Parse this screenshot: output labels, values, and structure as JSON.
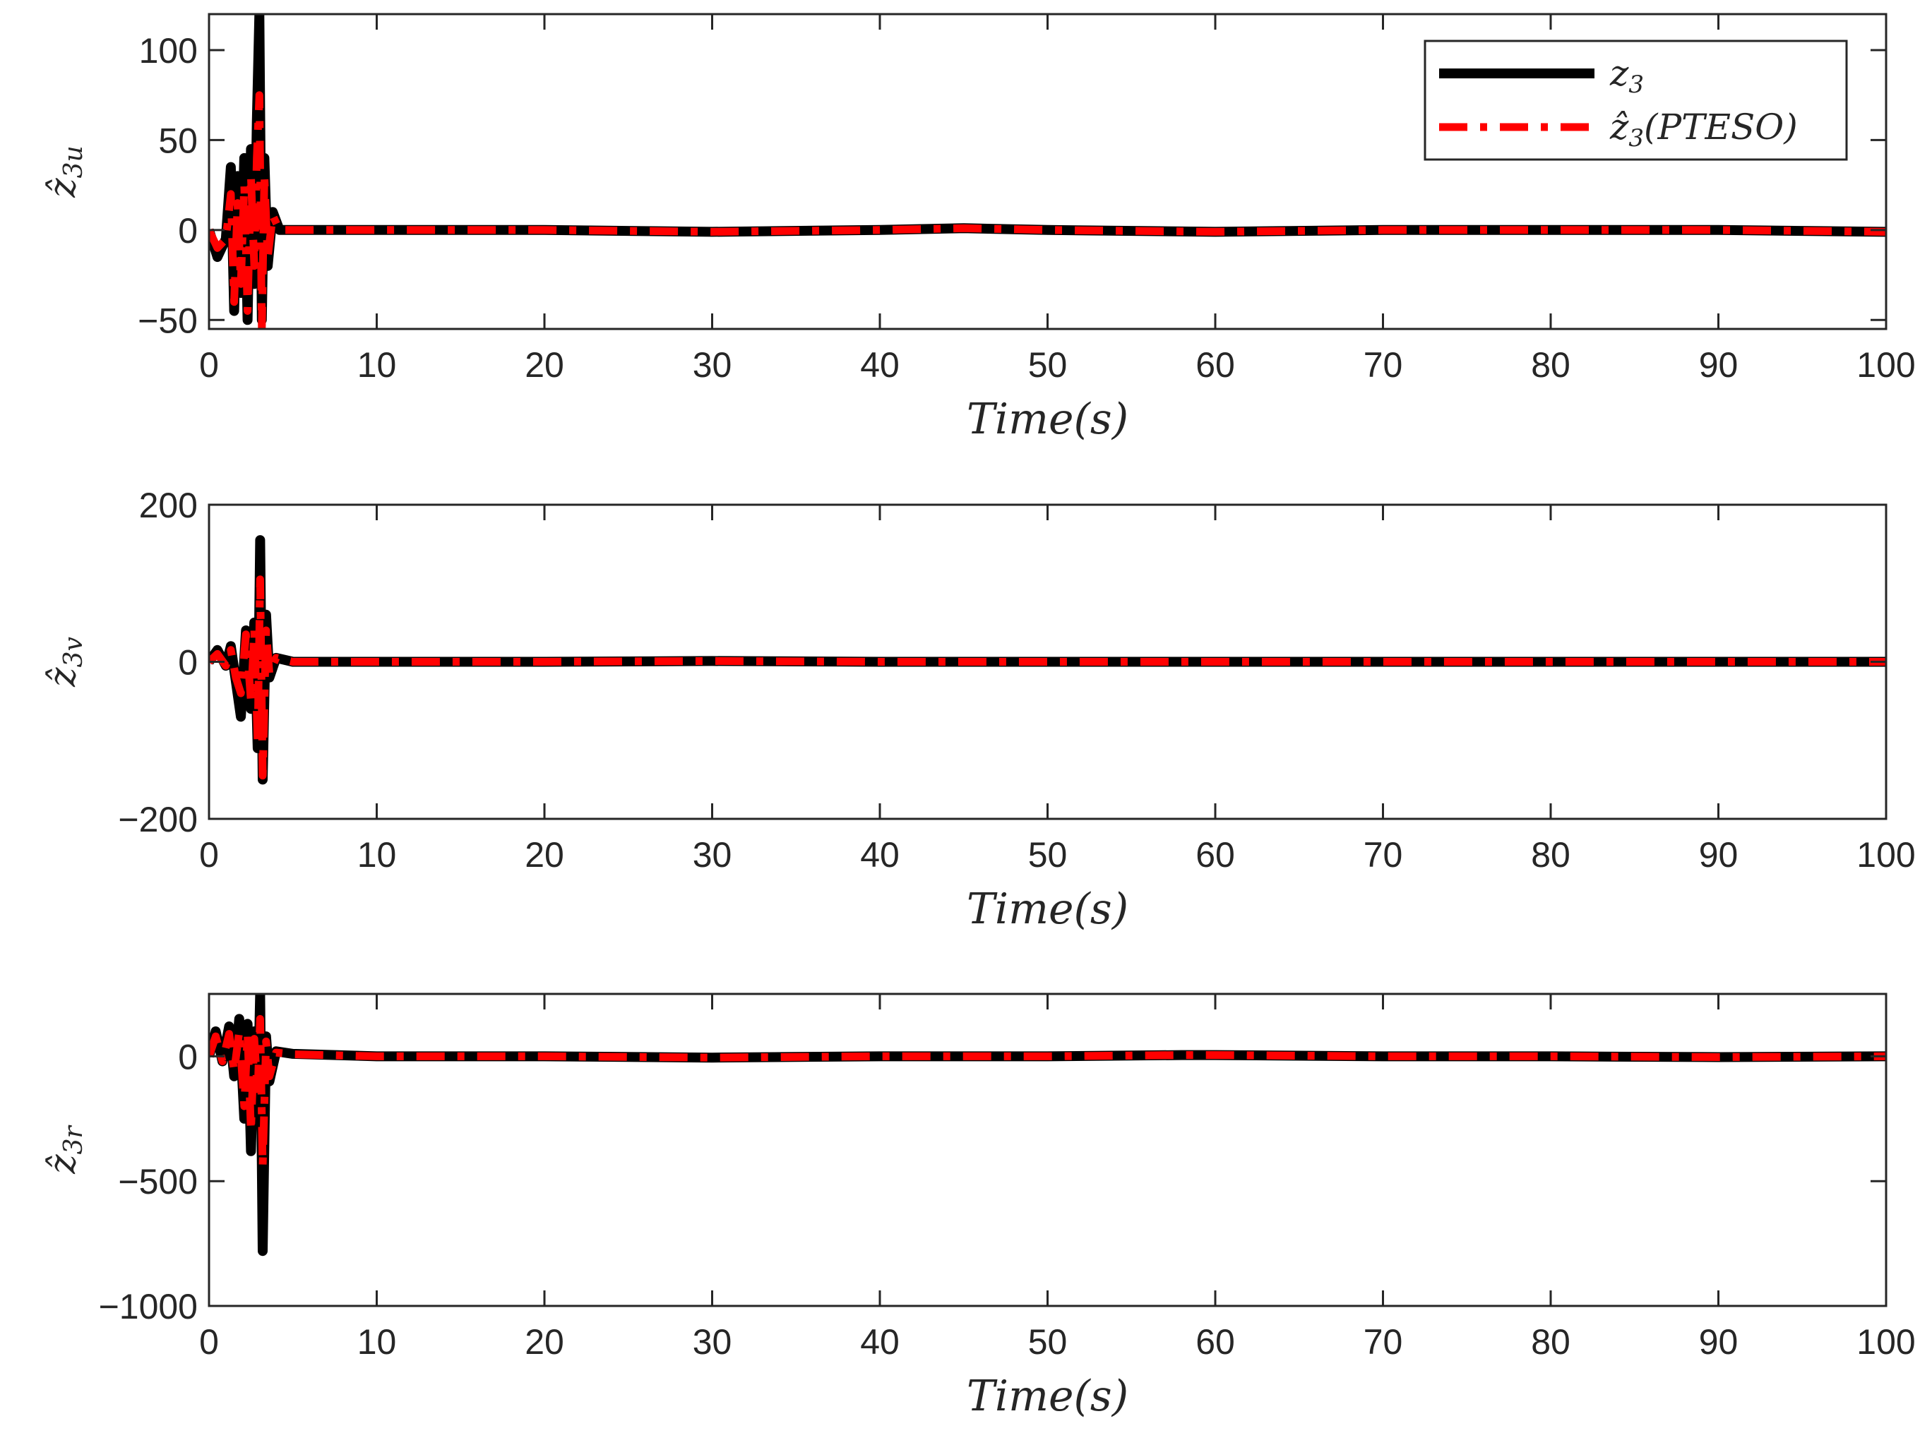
{
  "chart_data": [
    {
      "type": "line",
      "xlabel": "Time(s)",
      "ylabel": {
        "base": "ẑ",
        "sub": "3u"
      },
      "xlim": [
        0,
        100
      ],
      "ylim": [
        -55,
        120
      ],
      "xticks": [
        0,
        10,
        20,
        30,
        40,
        50,
        60,
        70,
        80,
        90,
        100
      ],
      "yticks": [
        -50,
        0,
        50,
        100
      ],
      "grid": false,
      "legend": {
        "position": "top-right",
        "entries": [
          {
            "base": "z",
            "sub": "3",
            "suffix": ""
          },
          {
            "base": "ẑ",
            "sub": "3",
            "suffix": "(PTESO)"
          }
        ]
      },
      "series": [
        {
          "x": [
            0,
            0.5,
            1.0,
            1.3,
            1.5,
            1.7,
            1.9,
            2.1,
            2.3,
            2.5,
            2.7,
            2.85,
            3.0,
            3.15,
            3.3,
            3.5,
            3.8,
            4.2,
            5,
            10,
            20,
            30,
            40,
            45,
            50,
            60,
            70,
            80,
            90,
            100
          ],
          "y": [
            0,
            -15,
            -5,
            35,
            -45,
            30,
            -35,
            40,
            -50,
            45,
            -30,
            60,
            120,
            -50,
            40,
            -20,
            10,
            0,
            0,
            0,
            0,
            -1,
            0,
            1,
            0,
            -1,
            0,
            0,
            0,
            -1
          ]
        },
        {
          "x": [
            0,
            0.5,
            1.0,
            1.3,
            1.5,
            1.7,
            1.9,
            2.1,
            2.3,
            2.5,
            2.7,
            2.85,
            3.0,
            3.15,
            3.3,
            3.5,
            3.8,
            4.2,
            5,
            10,
            20,
            30,
            40,
            45,
            50,
            60,
            70,
            80,
            90,
            100
          ],
          "y": [
            0,
            -10,
            -5,
            20,
            -40,
            15,
            -30,
            25,
            -45,
            30,
            -20,
            40,
            75,
            -55,
            30,
            -15,
            8,
            0,
            0,
            0,
            0,
            -1,
            0,
            1,
            0,
            -1,
            0,
            0,
            0,
            -1
          ]
        }
      ]
    },
    {
      "type": "line",
      "xlabel": "Time(s)",
      "ylabel": {
        "base": "ẑ",
        "sub": "3v"
      },
      "xlim": [
        0,
        100
      ],
      "ylim": [
        -200,
        200
      ],
      "xticks": [
        0,
        10,
        20,
        30,
        40,
        50,
        60,
        70,
        80,
        90,
        100
      ],
      "yticks": [
        -200,
        0,
        200
      ],
      "grid": false,
      "series": [
        {
          "x": [
            0,
            0.5,
            1.0,
            1.3,
            1.6,
            1.9,
            2.2,
            2.5,
            2.7,
            2.9,
            3.05,
            3.2,
            3.4,
            3.6,
            4.0,
            5,
            10,
            20,
            30,
            40,
            50,
            60,
            70,
            80,
            90,
            100
          ],
          "y": [
            0,
            15,
            -5,
            20,
            -25,
            -70,
            40,
            -60,
            50,
            -110,
            155,
            -150,
            60,
            -20,
            5,
            0,
            0,
            0,
            1,
            0,
            0,
            0,
            0,
            0,
            0,
            0
          ]
        },
        {
          "x": [
            0,
            0.5,
            1.0,
            1.3,
            1.6,
            1.9,
            2.2,
            2.5,
            2.7,
            2.9,
            3.05,
            3.2,
            3.4,
            3.6,
            4.0,
            5,
            10,
            20,
            30,
            40,
            50,
            60,
            70,
            80,
            90,
            100
          ],
          "y": [
            0,
            10,
            -5,
            15,
            -20,
            -40,
            35,
            -50,
            40,
            -100,
            105,
            -145,
            40,
            -15,
            5,
            0,
            0,
            0,
            1,
            0,
            0,
            0,
            0,
            0,
            0,
            0
          ]
        }
      ]
    },
    {
      "type": "line",
      "xlabel": "Time(s)",
      "ylabel": {
        "base": "ẑ",
        "sub": "3r"
      },
      "xlim": [
        0,
        100
      ],
      "ylim": [
        -1000,
        250
      ],
      "xticks": [
        0,
        10,
        20,
        30,
        40,
        50,
        60,
        70,
        80,
        90,
        100
      ],
      "yticks": [
        -1000,
        -500,
        0
      ],
      "grid": false,
      "series": [
        {
          "x": [
            0,
            0.4,
            0.8,
            1.2,
            1.5,
            1.8,
            2.1,
            2.3,
            2.5,
            2.7,
            2.9,
            3.05,
            3.2,
            3.4,
            3.6,
            4.0,
            5,
            10,
            20,
            30,
            40,
            50,
            58,
            60,
            70,
            80,
            90,
            100
          ],
          "y": [
            0,
            100,
            -20,
            120,
            -80,
            150,
            -250,
            130,
            -380,
            100,
            -200,
            250,
            -780,
            80,
            -100,
            20,
            10,
            0,
            0,
            -5,
            0,
            0,
            5,
            5,
            0,
            0,
            -3,
            0
          ]
        },
        {
          "x": [
            0,
            0.4,
            0.8,
            1.2,
            1.5,
            1.8,
            2.1,
            2.3,
            2.5,
            2.7,
            2.9,
            3.05,
            3.2,
            3.4,
            3.6,
            4.0,
            5,
            10,
            20,
            30,
            40,
            50,
            58,
            60,
            70,
            80,
            90,
            100
          ],
          "y": [
            0,
            80,
            -20,
            90,
            -60,
            100,
            -200,
            90,
            -300,
            70,
            -150,
            150,
            -440,
            60,
            -80,
            15,
            8,
            0,
            0,
            -5,
            0,
            0,
            5,
            5,
            0,
            0,
            -3,
            0
          ]
        }
      ]
    }
  ],
  "style": {
    "series_colors": [
      "#000000",
      "#ff0000"
    ]
  }
}
